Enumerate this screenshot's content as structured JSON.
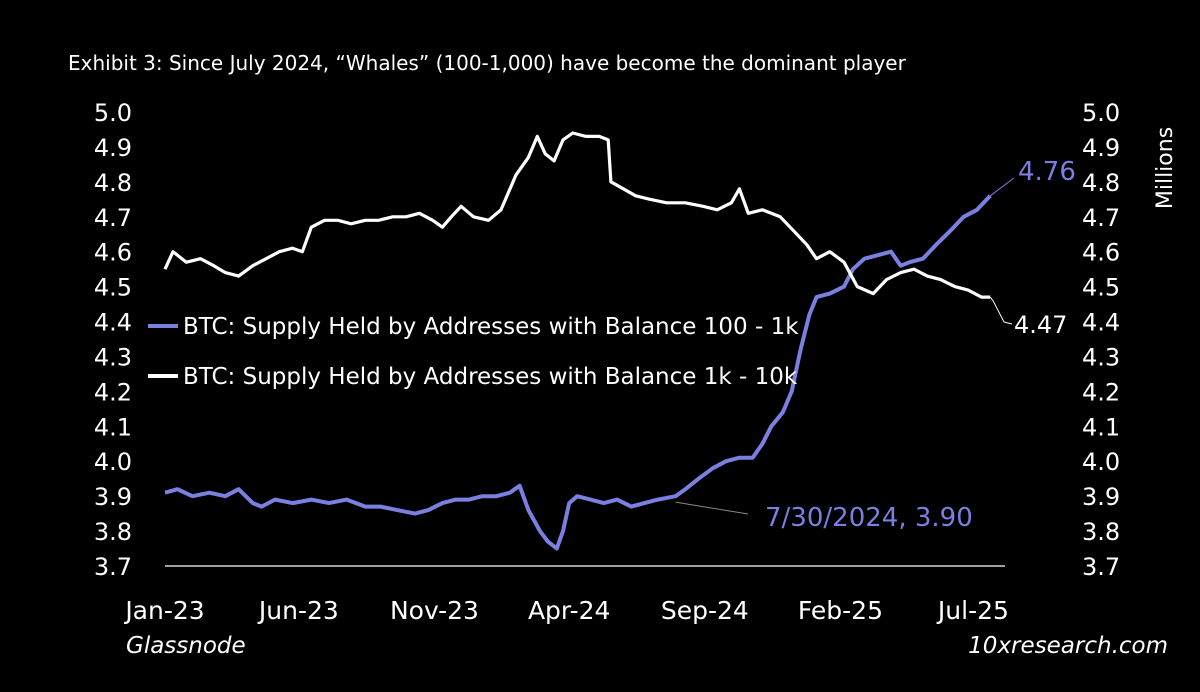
{
  "colors": {
    "background": "#000000",
    "series_100_1k": "#7b7fe0",
    "series_1k_10k": "#ffffff"
  },
  "footer": {
    "source": "Glassnode",
    "site": "10xresearch.com"
  },
  "chart_data": {
    "type": "line",
    "title": "Exhibit 3: Since July 2024, “Whales” (100-1,000) have become the dominant player",
    "ylabel_right": "Millions",
    "ylim": [
      3.7,
      5.0
    ],
    "yticks": [
      "5.0",
      "4.9",
      "4.8",
      "4.7",
      "4.6",
      "4.5",
      "4.4",
      "4.3",
      "4.2",
      "4.1",
      "4.0",
      "3.9",
      "3.8",
      "3.7"
    ],
    "xlim": [
      "2023-01-01",
      "2025-07-31"
    ],
    "xticks": [
      {
        "label": "Jan-23",
        "date": "2023-01-01"
      },
      {
        "label": "Jun-23",
        "date": "2023-06-01"
      },
      {
        "label": "Nov-23",
        "date": "2023-11-01"
      },
      {
        "label": "Apr-24",
        "date": "2024-04-01"
      },
      {
        "label": "Sep-24",
        "date": "2024-09-01"
      },
      {
        "label": "Feb-25",
        "date": "2025-02-01"
      },
      {
        "label": "Jul-25",
        "date": "2025-07-01"
      }
    ],
    "legend_position": "center-left",
    "grid": false,
    "series": [
      {
        "name": "BTC: Supply Held by Addresses with Balance 100 - 1k",
        "color": "#7b7fe0",
        "points": [
          [
            "2023-01-01",
            3.91
          ],
          [
            "2023-01-15",
            3.92
          ],
          [
            "2023-02-01",
            3.9
          ],
          [
            "2023-02-20",
            3.91
          ],
          [
            "2023-03-10",
            3.9
          ],
          [
            "2023-03-25",
            3.92
          ],
          [
            "2023-04-10",
            3.88
          ],
          [
            "2023-04-20",
            3.87
          ],
          [
            "2023-05-05",
            3.89
          ],
          [
            "2023-05-25",
            3.88
          ],
          [
            "2023-06-15",
            3.89
          ],
          [
            "2023-07-05",
            3.88
          ],
          [
            "2023-07-25",
            3.89
          ],
          [
            "2023-08-15",
            3.87
          ],
          [
            "2023-09-01",
            3.87
          ],
          [
            "2023-09-20",
            3.86
          ],
          [
            "2023-10-10",
            3.85
          ],
          [
            "2023-10-25",
            3.86
          ],
          [
            "2023-11-10",
            3.88
          ],
          [
            "2023-11-25",
            3.89
          ],
          [
            "2023-12-10",
            3.89
          ],
          [
            "2023-12-25",
            3.9
          ],
          [
            "2024-01-10",
            3.9
          ],
          [
            "2024-01-25",
            3.91
          ],
          [
            "2024-02-05",
            3.93
          ],
          [
            "2024-02-15",
            3.86
          ],
          [
            "2024-02-28",
            3.8
          ],
          [
            "2024-03-08",
            3.77
          ],
          [
            "2024-03-18",
            3.75
          ],
          [
            "2024-03-25",
            3.8
          ],
          [
            "2024-04-01",
            3.88
          ],
          [
            "2024-04-10",
            3.9
          ],
          [
            "2024-04-25",
            3.89
          ],
          [
            "2024-05-10",
            3.88
          ],
          [
            "2024-05-25",
            3.89
          ],
          [
            "2024-06-10",
            3.87
          ],
          [
            "2024-06-25",
            3.88
          ],
          [
            "2024-07-10",
            3.89
          ],
          [
            "2024-07-30",
            3.9
          ],
          [
            "2024-08-10",
            3.92
          ],
          [
            "2024-08-25",
            3.95
          ],
          [
            "2024-09-10",
            3.98
          ],
          [
            "2024-09-25",
            4.0
          ],
          [
            "2024-10-10",
            4.01
          ],
          [
            "2024-10-25",
            4.01
          ],
          [
            "2024-11-05",
            4.05
          ],
          [
            "2024-11-15",
            4.1
          ],
          [
            "2024-11-28",
            4.14
          ],
          [
            "2024-12-08",
            4.2
          ],
          [
            "2024-12-18",
            4.32
          ],
          [
            "2024-12-28",
            4.42
          ],
          [
            "2025-01-05",
            4.47
          ],
          [
            "2025-01-20",
            4.48
          ],
          [
            "2025-02-05",
            4.5
          ],
          [
            "2025-02-15",
            4.55
          ],
          [
            "2025-02-28",
            4.58
          ],
          [
            "2025-03-15",
            4.59
          ],
          [
            "2025-03-30",
            4.6
          ],
          [
            "2025-04-10",
            4.56
          ],
          [
            "2025-04-20",
            4.57
          ],
          [
            "2025-05-05",
            4.58
          ],
          [
            "2025-05-20",
            4.62
          ],
          [
            "2025-06-05",
            4.66
          ],
          [
            "2025-06-20",
            4.7
          ],
          [
            "2025-07-05",
            4.72
          ],
          [
            "2025-07-20",
            4.76
          ]
        ]
      },
      {
        "name": "BTC: Supply Held by Addresses with Balance 1k - 10k",
        "color": "#ffffff",
        "points": [
          [
            "2023-01-01",
            4.55
          ],
          [
            "2023-01-10",
            4.6
          ],
          [
            "2023-01-25",
            4.57
          ],
          [
            "2023-02-10",
            4.58
          ],
          [
            "2023-02-25",
            4.56
          ],
          [
            "2023-03-10",
            4.54
          ],
          [
            "2023-03-25",
            4.53
          ],
          [
            "2023-04-10",
            4.56
          ],
          [
            "2023-04-25",
            4.58
          ],
          [
            "2023-05-10",
            4.6
          ],
          [
            "2023-05-25",
            4.61
          ],
          [
            "2023-06-05",
            4.6
          ],
          [
            "2023-06-15",
            4.67
          ],
          [
            "2023-06-30",
            4.69
          ],
          [
            "2023-07-15",
            4.69
          ],
          [
            "2023-07-30",
            4.68
          ],
          [
            "2023-08-15",
            4.69
          ],
          [
            "2023-08-30",
            4.69
          ],
          [
            "2023-09-15",
            4.7
          ],
          [
            "2023-09-30",
            4.7
          ],
          [
            "2023-10-15",
            4.71
          ],
          [
            "2023-10-30",
            4.69
          ],
          [
            "2023-11-10",
            4.67
          ],
          [
            "2023-11-20",
            4.7
          ],
          [
            "2023-12-01",
            4.73
          ],
          [
            "2023-12-15",
            4.7
          ],
          [
            "2024-01-01",
            4.69
          ],
          [
            "2024-01-15",
            4.72
          ],
          [
            "2024-02-01",
            4.82
          ],
          [
            "2024-02-15",
            4.87
          ],
          [
            "2024-02-25",
            4.93
          ],
          [
            "2024-03-05",
            4.88
          ],
          [
            "2024-03-15",
            4.86
          ],
          [
            "2024-03-25",
            4.92
          ],
          [
            "2024-04-05",
            4.94
          ],
          [
            "2024-04-20",
            4.93
          ],
          [
            "2024-05-05",
            4.93
          ],
          [
            "2024-05-15",
            4.92
          ],
          [
            "2024-05-18",
            4.8
          ],
          [
            "2024-06-01",
            4.78
          ],
          [
            "2024-06-15",
            4.76
          ],
          [
            "2024-07-01",
            4.75
          ],
          [
            "2024-07-20",
            4.74
          ],
          [
            "2024-08-10",
            4.74
          ],
          [
            "2024-08-30",
            4.73
          ],
          [
            "2024-09-15",
            4.72
          ],
          [
            "2024-10-01",
            4.74
          ],
          [
            "2024-10-10",
            4.78
          ],
          [
            "2024-10-20",
            4.71
          ],
          [
            "2024-11-05",
            4.72
          ],
          [
            "2024-11-25",
            4.7
          ],
          [
            "2024-12-10",
            4.66
          ],
          [
            "2024-12-25",
            4.62
          ],
          [
            "2025-01-05",
            4.58
          ],
          [
            "2025-01-20",
            4.6
          ],
          [
            "2025-02-05",
            4.57
          ],
          [
            "2025-02-20",
            4.5
          ],
          [
            "2025-03-10",
            4.48
          ],
          [
            "2025-03-25",
            4.52
          ],
          [
            "2025-04-10",
            4.54
          ],
          [
            "2025-04-25",
            4.55
          ],
          [
            "2025-05-10",
            4.53
          ],
          [
            "2025-05-25",
            4.52
          ],
          [
            "2025-06-10",
            4.5
          ],
          [
            "2025-06-25",
            4.49
          ],
          [
            "2025-07-10",
            4.47
          ],
          [
            "2025-07-20",
            4.47
          ]
        ]
      }
    ],
    "annotations": [
      {
        "text": "4.76",
        "series": 0,
        "date": "2025-07-20",
        "value": 4.76
      },
      {
        "text": "4.47",
        "series": 1,
        "date": "2025-07-20",
        "value": 4.47
      },
      {
        "text": "7/30/2024, 3.90",
        "series": 0,
        "date": "2024-07-30",
        "value": 3.9
      }
    ]
  }
}
